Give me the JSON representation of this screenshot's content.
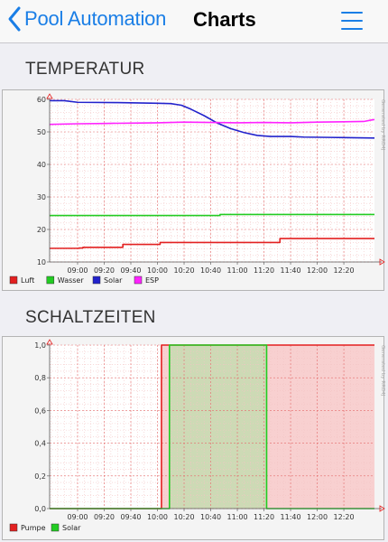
{
  "nav": {
    "back_label": "Pool Automation",
    "title": "Charts"
  },
  "sections": {
    "temperature_title": "TEMPERATUR",
    "switching_title": "SCHALTZEITEN"
  },
  "watermark": "Generated by RRD4J",
  "chart_data": [
    {
      "type": "line",
      "title": "TEMPERATUR",
      "x_ticks": [
        "09:00",
        "09:20",
        "09:40",
        "10:00",
        "10:20",
        "10:40",
        "11:00",
        "11:20",
        "11:40",
        "12:00",
        "12:20"
      ],
      "x_range": [
        "08:39",
        "12:43"
      ],
      "ylim": [
        10,
        60
      ],
      "y_ticks": [
        10,
        20,
        30,
        40,
        50,
        60
      ],
      "grid": true,
      "legend": "bottom-left",
      "series": [
        {
          "name": "Luft",
          "color": "#e32020",
          "step": true,
          "points": [
            [
              "08:39",
              14.2
            ],
            [
              "09:01",
              14.3
            ],
            [
              "09:04",
              14.5
            ],
            [
              "09:33",
              14.5
            ],
            [
              "09:34",
              15.4
            ],
            [
              "10:01",
              15.4
            ],
            [
              "10:02",
              16.0
            ],
            [
              "11:31",
              16.0
            ],
            [
              "11:32",
              17.2
            ],
            [
              "12:43",
              17.2
            ]
          ]
        },
        {
          "name": "Wasser",
          "color": "#22cc22",
          "step": true,
          "points": [
            [
              "08:39",
              24.3
            ],
            [
              "10:46",
              24.3
            ],
            [
              "10:47",
              24.6
            ],
            [
              "12:43",
              24.6
            ]
          ]
        },
        {
          "name": "Solar",
          "color": "#2222cc",
          "step": false,
          "points": [
            [
              "08:39",
              59.6
            ],
            [
              "08:50",
              59.6
            ],
            [
              "09:00",
              59.1
            ],
            [
              "09:30",
              59.0
            ],
            [
              "10:00",
              58.8
            ],
            [
              "10:10",
              58.7
            ],
            [
              "10:18",
              58.2
            ],
            [
              "10:25",
              57.0
            ],
            [
              "10:35",
              55.0
            ],
            [
              "10:45",
              52.7
            ],
            [
              "10:55",
              51.0
            ],
            [
              "11:05",
              49.8
            ],
            [
              "11:15",
              48.9
            ],
            [
              "11:25",
              48.6
            ],
            [
              "11:40",
              48.6
            ],
            [
              "11:50",
              48.4
            ],
            [
              "12:10",
              48.3
            ],
            [
              "12:43",
              48.1
            ]
          ]
        },
        {
          "name": "ESP",
          "color": "#ff22ff",
          "step": false,
          "points": [
            [
              "08:39",
              52.3
            ],
            [
              "09:00",
              52.5
            ],
            [
              "09:20",
              52.6
            ],
            [
              "09:40",
              52.7
            ],
            [
              "10:00",
              52.8
            ],
            [
              "10:20",
              53.0
            ],
            [
              "10:40",
              52.9
            ],
            [
              "11:00",
              52.8
            ],
            [
              "11:20",
              52.9
            ],
            [
              "11:40",
              52.8
            ],
            [
              "12:00",
              53.0
            ],
            [
              "12:20",
              53.1
            ],
            [
              "12:35",
              53.2
            ],
            [
              "12:40",
              53.6
            ],
            [
              "12:43",
              53.8
            ]
          ]
        }
      ]
    },
    {
      "type": "line",
      "title": "SCHALTZEITEN",
      "x_ticks": [
        "09:00",
        "09:20",
        "09:40",
        "10:00",
        "10:20",
        "10:40",
        "11:00",
        "11:20",
        "11:40",
        "12:00",
        "12:20"
      ],
      "x_range": [
        "08:39",
        "12:43"
      ],
      "ylim": [
        0.0,
        1.0
      ],
      "y_ticks": [
        "0,0",
        "0,2",
        "0,4",
        "0,6",
        "0,8",
        "1,0"
      ],
      "grid": true,
      "legend": "bottom-left",
      "series": [
        {
          "name": "Pumpe",
          "color": "#e32020",
          "area_fill": "#f7c8c8",
          "step": true,
          "points": [
            [
              "08:39",
              0
            ],
            [
              "10:03",
              0
            ],
            [
              "10:03",
              1
            ],
            [
              "12:43",
              1
            ]
          ]
        },
        {
          "name": "Solar",
          "color": "#22cc22",
          "area_fill": "#c6dcb0",
          "step": true,
          "points": [
            [
              "08:39",
              0
            ],
            [
              "10:09",
              0
            ],
            [
              "10:09",
              1
            ],
            [
              "11:22",
              1
            ],
            [
              "11:22",
              0
            ],
            [
              "12:43",
              0
            ]
          ]
        }
      ]
    }
  ]
}
